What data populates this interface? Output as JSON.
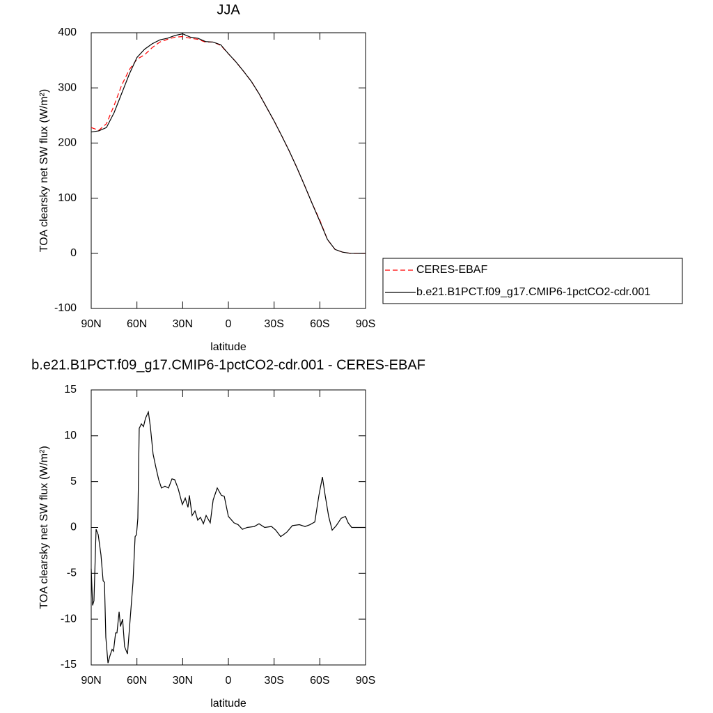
{
  "chart_data": [
    {
      "type": "line",
      "title": "JJA",
      "xlabel": "latitude",
      "ylabel": "TOA clearsky net SW flux (W/m²)",
      "x": [
        90,
        85,
        80,
        75,
        70,
        65,
        60,
        55,
        50,
        45,
        40,
        35,
        30,
        25,
        20,
        15,
        10,
        5,
        0,
        -5,
        -10,
        -15,
        -20,
        -25,
        -30,
        -35,
        -40,
        -45,
        -50,
        -55,
        -60,
        -65,
        -70,
        -75,
        -80,
        -85,
        -90
      ],
      "series": [
        {
          "name": "CERES-EBAF",
          "color": "#ff0000",
          "line_style": "dashed",
          "values": [
            228,
            223,
            235,
            268,
            305,
            333,
            352,
            360,
            373,
            383,
            388,
            392,
            393,
            390,
            388,
            383,
            383,
            377,
            362,
            347,
            330,
            312,
            290,
            265,
            240,
            213,
            185,
            155,
            123,
            90,
            60,
            25,
            7,
            2,
            0,
            0,
            0
          ]
        },
        {
          "name": "b.e21.B1PCT.f09_g17.CMIP6-1pctCO2-cdr.001",
          "color": "#000000",
          "line_style": "solid",
          "values": [
            220,
            222,
            228,
            255,
            290,
            325,
            355,
            370,
            380,
            387,
            390,
            395,
            398,
            392,
            390,
            384,
            383,
            378,
            362,
            347,
            330,
            312,
            290,
            265,
            240,
            213,
            185,
            155,
            123,
            90,
            58,
            25,
            7,
            2,
            0,
            0,
            0
          ]
        }
      ],
      "xlim": [
        90,
        -90
      ],
      "xticks": [
        {
          "value": 90,
          "label": "90N"
        },
        {
          "value": 60,
          "label": "60N"
        },
        {
          "value": 30,
          "label": "30N"
        },
        0,
        {
          "value": -30,
          "label": "30S"
        },
        {
          "value": -60,
          "label": "60S"
        },
        {
          "value": -90,
          "label": "90S"
        }
      ],
      "ylim": [
        -100,
        400
      ],
      "yticks": [
        -100,
        0,
        100,
        200,
        300,
        400
      ],
      "legend": "right"
    },
    {
      "type": "line",
      "title": "b.e21.B1PCT.f09_g17.CMIP6-1pctCO2-cdr.001 - CERES-EBAF",
      "xlabel": "latitude",
      "ylabel": "TOA clearsky net SW flux (W/m²)",
      "x": [
        90,
        89.1,
        88.2,
        86.8,
        85.4,
        83.6,
        82.2,
        81.3,
        80.4,
        79.0,
        77.7,
        76.3,
        75.4,
        74.0,
        73.1,
        71.7,
        70.8,
        69.4,
        68.1,
        66.2,
        64.9,
        62.6,
        61.2,
        60.3,
        59.4,
        58.5,
        57.1,
        55.7,
        54.4,
        52.5,
        51.2,
        49.4,
        47.5,
        45.7,
        43.9,
        41.6,
        39.3,
        37.0,
        35.2,
        32.9,
        30.2,
        28.3,
        26.5,
        25.6,
        23.8,
        21.9,
        20.1,
        18.3,
        16.4,
        14.6,
        11.9,
        10.0,
        7.3,
        4.6,
        2.7,
        0.0,
        -3.7,
        -6.4,
        -9.2,
        -12.4,
        -17.0,
        -20.1,
        -23.8,
        -28.3,
        -31.1,
        -34.3,
        -36.1,
        -38.4,
        -42.0,
        -46.6,
        -50.3,
        -53.5,
        -56.7,
        -59.4,
        -61.7,
        -63.5,
        -65.8,
        -68.1,
        -70.8,
        -74.0,
        -76.8,
        -78.6,
        -80.9,
        -90
      ],
      "series": [
        {
          "color": "#000000",
          "line_style": "solid",
          "values": [
            -4.5,
            -8.5,
            -8,
            -0.2,
            -0.8,
            -3,
            -5.8,
            -6,
            -12,
            -14.8,
            -14,
            -13.3,
            -13.5,
            -11.5,
            -11.5,
            -9.2,
            -10.8,
            -10,
            -13,
            -13.8,
            -11,
            -6,
            -1,
            -0.8,
            1,
            10.8,
            11.3,
            11,
            11.9,
            12.6,
            11,
            8,
            6.5,
            5.2,
            4.3,
            4.5,
            4.3,
            5.3,
            5.2,
            4.2,
            2.5,
            3.2,
            2.2,
            3.5,
            1.3,
            1.8,
            0.8,
            1.1,
            0.4,
            1.3,
            0.5,
            3,
            4.3,
            3.5,
            3.4,
            1.2,
            0.5,
            0.3,
            -0.2,
            0,
            0.1,
            0.4,
            0,
            0.1,
            -0.3,
            -1,
            -0.8,
            -0.5,
            0.2,
            0.3,
            0.1,
            0.3,
            0.6,
            3.5,
            5.5,
            3.5,
            1.2,
            -0.3,
            0.2,
            1,
            1.2,
            0.5,
            0,
            0
          ]
        }
      ],
      "xlim": [
        90,
        -90
      ],
      "xticks": [
        {
          "value": 90,
          "label": "90N"
        },
        {
          "value": 60,
          "label": "60N"
        },
        {
          "value": 30,
          "label": "30N"
        },
        0,
        {
          "value": -30,
          "label": "30S"
        },
        {
          "value": -60,
          "label": "60S"
        },
        {
          "value": -90,
          "label": "90S"
        }
      ],
      "ylim": [
        -15,
        15
      ],
      "yticks": [
        -15,
        -10,
        -5,
        0,
        5,
        10,
        15
      ]
    }
  ]
}
